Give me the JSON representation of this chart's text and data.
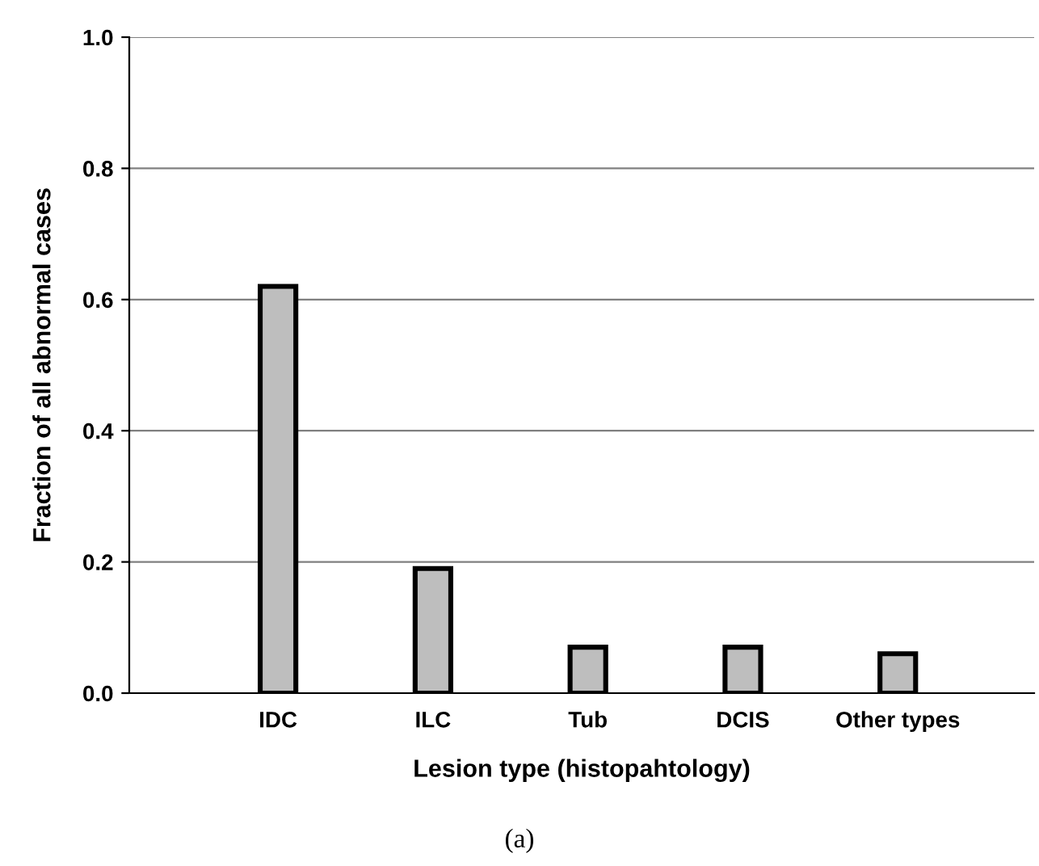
{
  "chart_data": {
    "type": "bar",
    "xlabel": "Lesion type (histopahtology)",
    "ylabel": "Fraction of all abnormal cases",
    "categories": [
      "IDC",
      "ILC",
      "Tub",
      "DCIS",
      "Other types"
    ],
    "values": [
      0.62,
      0.19,
      0.07,
      0.07,
      0.06
    ],
    "color": "#bebebe",
    "ylim": [
      0,
      1.0
    ],
    "yticks": [
      {
        "value": 0,
        "label": "0.0"
      },
      {
        "value": 0.2,
        "label": "0.2"
      },
      {
        "value": 0.4,
        "label": "0.4"
      },
      {
        "value": 0.6,
        "label": "0.6"
      },
      {
        "value": 0.8,
        "label": "0.8"
      },
      {
        "value": 1.0,
        "label": "1.0"
      }
    ],
    "grid": "y",
    "annotations": [
      "(a)"
    ]
  }
}
